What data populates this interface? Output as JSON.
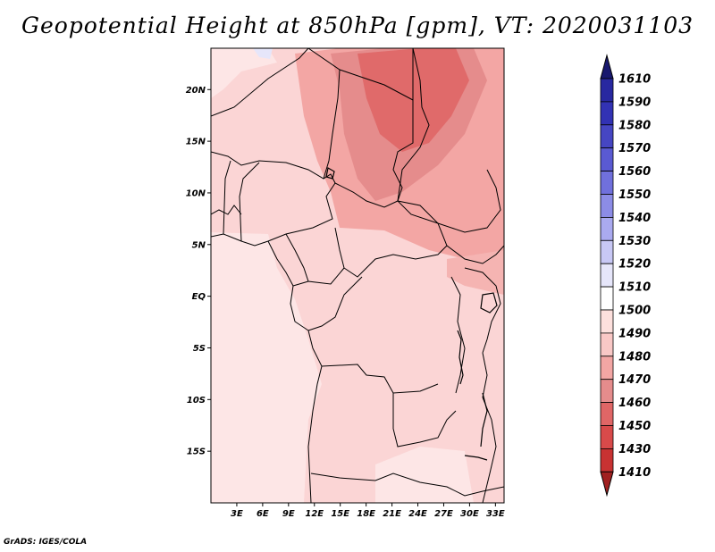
{
  "title": "Geopotential Height at 850hPa [gpm], VT: 2020031103",
  "credit": "GrADS: IGES/COLA",
  "map": {
    "lon_range": [
      0,
      34
    ],
    "lat_range": [
      -20,
      24
    ],
    "lat_ticks": [
      {
        "value": 20,
        "label": "20N"
      },
      {
        "value": 15,
        "label": "15N"
      },
      {
        "value": 10,
        "label": "10N"
      },
      {
        "value": 5,
        "label": "5N"
      },
      {
        "value": 0,
        "label": "EQ"
      },
      {
        "value": -5,
        "label": "5S"
      },
      {
        "value": -10,
        "label": "10S"
      },
      {
        "value": -15,
        "label": "15S"
      }
    ],
    "lon_ticks": [
      {
        "value": 3,
        "label": "3E"
      },
      {
        "value": 6,
        "label": "6E"
      },
      {
        "value": 9,
        "label": "9E"
      },
      {
        "value": 12,
        "label": "12E"
      },
      {
        "value": 15,
        "label": "15E"
      },
      {
        "value": 18,
        "label": "18E"
      },
      {
        "value": 21,
        "label": "21E"
      },
      {
        "value": 24,
        "label": "24E"
      },
      {
        "value": 27,
        "label": "27E"
      },
      {
        "value": 30,
        "label": "30E"
      },
      {
        "value": 33,
        "label": "33E"
      }
    ]
  },
  "colorbar": {
    "levels": [
      {
        "label": "1610",
        "color": "#1e1e8c"
      },
      {
        "label": "1590",
        "color": "#2828a0"
      },
      {
        "label": "1580",
        "color": "#3232b4"
      },
      {
        "label": "1570",
        "color": "#4646c3"
      },
      {
        "label": "1560",
        "color": "#5a5ad2"
      },
      {
        "label": "1550",
        "color": "#7070dc"
      },
      {
        "label": "1540",
        "color": "#8c8ce6"
      },
      {
        "label": "1530",
        "color": "#aaaaf0"
      },
      {
        "label": "1520",
        "color": "#c8c8f5"
      },
      {
        "label": "1510",
        "color": "#e6e6fa"
      },
      {
        "label": "1500",
        "color": "#ffffff"
      },
      {
        "label": "1490",
        "color": "#fde0dd"
      },
      {
        "label": "1480",
        "color": "#f9c8c6"
      },
      {
        "label": "1470",
        "color": "#f3a6a4"
      },
      {
        "label": "1460",
        "color": "#e58c8c"
      },
      {
        "label": "1450",
        "color": "#e06666"
      },
      {
        "label": "1430",
        "color": "#d84a4a"
      },
      {
        "label": "1410",
        "color": "#c83232"
      }
    ],
    "top_cap_color": "#18186e",
    "bottom_cap_color": "#a02020"
  }
}
